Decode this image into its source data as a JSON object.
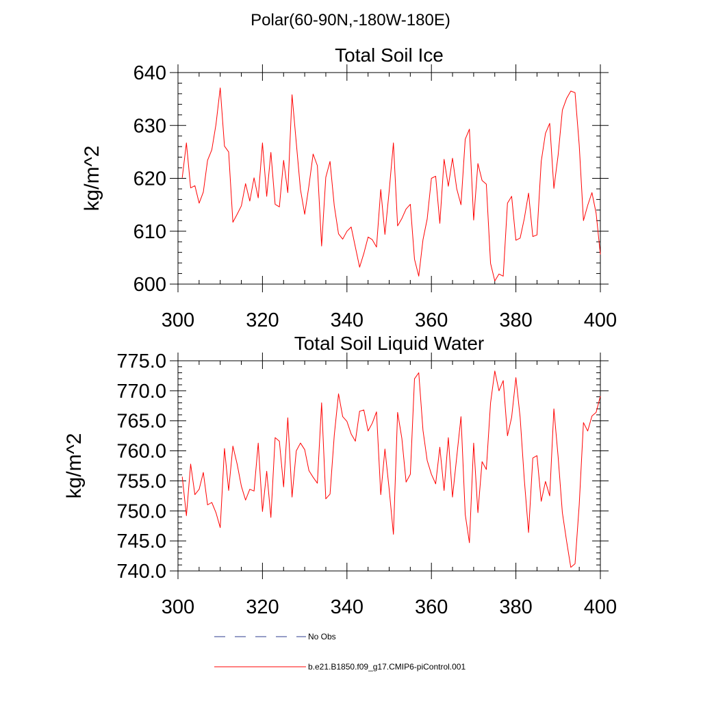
{
  "suptitle": "Polar(60-90N,-180W-180E)",
  "legend": {
    "obs_label": "No Obs",
    "model_label": "b.e21.B1850.f09_g17.CMIP6-piControl.001",
    "obs_color": "#2b3a8c",
    "model_color": "#ff0000"
  },
  "chart_data": [
    {
      "type": "line",
      "title": "Total Soil Ice",
      "xlabel": "",
      "ylabel": "kg/m^2",
      "xlim": [
        300,
        400
      ],
      "ylim": [
        600,
        640
      ],
      "xticks": [
        300,
        320,
        340,
        360,
        380,
        400
      ],
      "yticks": [
        600,
        610,
        620,
        630,
        640
      ],
      "ytick_labels": [
        "600",
        "610",
        "620",
        "630",
        "640"
      ],
      "grid": false,
      "series": [
        {
          "name": "b.e21.B1850.f09_g17.CMIP6-piControl.001",
          "color": "#ff0000",
          "x_start": 301,
          "x_step": 1,
          "values": [
            620.1,
            626.7,
            618.2,
            618.6,
            615.3,
            617.4,
            623.4,
            625.4,
            630.2,
            637.1,
            626.1,
            625.0,
            611.7,
            613.2,
            614.8,
            619.0,
            615.7,
            620.1,
            616.3,
            626.7,
            616.6,
            624.9,
            615.1,
            614.6,
            623.4,
            617.3,
            635.8,
            626.7,
            617.9,
            613.2,
            618.6,
            624.6,
            622.4,
            607.2,
            620.2,
            623.2,
            614.8,
            609.5,
            608.5,
            610.0,
            610.8,
            607.0,
            603.2,
            605.8,
            608.9,
            608.4,
            607.0,
            617.9,
            609.4,
            617.6,
            626.7,
            611.0,
            612.4,
            614.2,
            615.1,
            604.7,
            601.5,
            608.4,
            612.3,
            620.0,
            620.4,
            611.5,
            623.6,
            618.5,
            623.8,
            618.0,
            615.0,
            627.4,
            629.3,
            612.1,
            622.8,
            619.6,
            618.9,
            603.9,
            600.6,
            601.9,
            601.5,
            615.3,
            616.6,
            608.3,
            608.7,
            612.4,
            617.2,
            609.0,
            609.3,
            623.2,
            628.5,
            630.4,
            618.1,
            624.4,
            632.9,
            635.1,
            636.5,
            636.2,
            626.3,
            612.0,
            614.9,
            617.3,
            613.4,
            605.6
          ]
        }
      ]
    },
    {
      "type": "line",
      "title": "Total Soil Liquid Water",
      "xlabel": "",
      "ylabel": "kg/m^2",
      "xlim": [
        300,
        400
      ],
      "ylim": [
        740,
        775
      ],
      "xticks": [
        300,
        320,
        340,
        360,
        380,
        400
      ],
      "yticks": [
        740,
        745,
        750,
        755,
        760,
        765,
        770,
        775
      ],
      "ytick_labels": [
        "740.0",
        "745.0",
        "750.0",
        "755.0",
        "760.0",
        "765.0",
        "770.0",
        "775.0"
      ],
      "grid": false,
      "series": [
        {
          "name": "b.e21.B1850.f09_g17.CMIP6-piControl.001",
          "color": "#ff0000",
          "x_start": 301,
          "x_step": 1,
          "values": [
            755.7,
            749.2,
            757.8,
            752.7,
            753.6,
            756.4,
            751.0,
            751.4,
            749.7,
            747.2,
            760.4,
            753.4,
            760.8,
            757.8,
            754.1,
            751.8,
            753.6,
            753.3,
            761.3,
            749.9,
            756.6,
            748.9,
            762.2,
            761.6,
            754.0,
            765.5,
            752.3,
            760.0,
            761.3,
            760.2,
            756.7,
            755.6,
            754.6,
            768.0,
            752.0,
            752.8,
            762.6,
            769.5,
            765.7,
            764.9,
            762.8,
            761.6,
            766.6,
            766.8,
            763.3,
            764.6,
            766.5,
            752.7,
            760.3,
            753.6,
            746.1,
            766.4,
            762.1,
            754.8,
            756.1,
            772.0,
            773.0,
            763.4,
            758.4,
            756.1,
            754.5,
            760.6,
            753.4,
            762.2,
            752.3,
            759.0,
            765.7,
            749.4,
            744.7,
            761.3,
            749.7,
            758.2,
            756.9,
            768.0,
            773.3,
            770.0,
            771.7,
            762.5,
            765.6,
            772.2,
            765.6,
            755.2,
            746.4,
            758.8,
            759.2,
            751.6,
            754.9,
            752.5,
            767.0,
            759.0,
            749.7,
            745.0,
            740.6,
            741.2,
            751.0,
            764.7,
            763.3,
            765.8,
            766.4,
            769.1
          ]
        }
      ]
    }
  ]
}
